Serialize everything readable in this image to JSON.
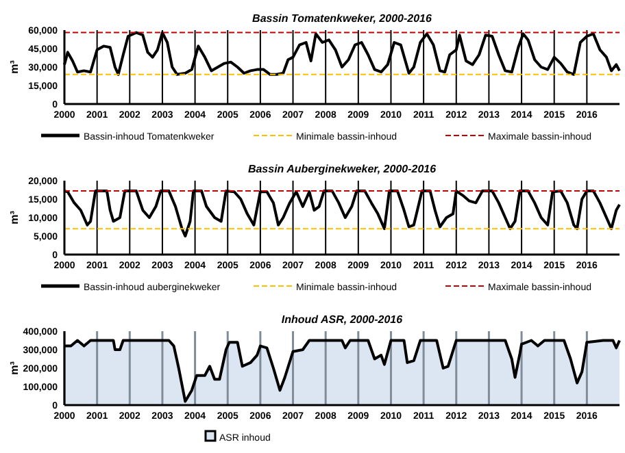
{
  "chart_data": [
    {
      "type": "line",
      "title": "Bassin Tomatenkweker, 2000-2016",
      "ylabel": "m³",
      "xlim": [
        2000,
        2017
      ],
      "xticks": [
        2000,
        2001,
        2002,
        2003,
        2004,
        2005,
        2006,
        2007,
        2008,
        2009,
        2010,
        2011,
        2012,
        2013,
        2014,
        2015,
        2016
      ],
      "ylim": [
        0,
        60000
      ],
      "yticks": [
        {
          "value": 0,
          "label": "0"
        },
        {
          "value": 15000,
          "label": "15,000"
        },
        {
          "value": 30000,
          "label": "30,000"
        },
        {
          "value": 45000,
          "label": "45,000"
        },
        {
          "value": 60000,
          "label": "60,000"
        }
      ],
      "grid": "x",
      "legend": "bottom",
      "line_style": "solid",
      "series": [
        {
          "name": "Bassin-inhoud Tomatenkweker",
          "color": "#000000",
          "x": [
            2000.0,
            2000.1,
            2000.25,
            2000.4,
            2000.6,
            2000.8,
            2001.0,
            2001.2,
            2001.4,
            2001.55,
            2001.65,
            2001.8,
            2001.95,
            2002.2,
            2002.4,
            2002.55,
            2002.7,
            2002.85,
            2003.0,
            2003.15,
            2003.3,
            2003.45,
            2003.7,
            2003.9,
            2004.1,
            2004.3,
            2004.5,
            2004.7,
            2004.9,
            2005.1,
            2005.3,
            2005.5,
            2005.7,
            2005.9,
            2006.1,
            2006.3,
            2006.5,
            2006.7,
            2006.85,
            2007.0,
            2007.2,
            2007.4,
            2007.55,
            2007.7,
            2007.9,
            2008.1,
            2008.3,
            2008.5,
            2008.7,
            2008.9,
            2009.1,
            2009.3,
            2009.5,
            2009.7,
            2009.9,
            2010.1,
            2010.3,
            2010.55,
            2010.7,
            2010.9,
            2011.1,
            2011.3,
            2011.5,
            2011.65,
            2011.8,
            2012.0,
            2012.1,
            2012.3,
            2012.5,
            2012.7,
            2012.9,
            2013.1,
            2013.3,
            2013.5,
            2013.7,
            2013.9,
            2014.05,
            2014.2,
            2014.4,
            2014.6,
            2014.8,
            2015.0,
            2015.2,
            2015.4,
            2015.6,
            2015.8,
            2016.0,
            2016.2,
            2016.4,
            2016.6,
            2016.75,
            2016.9,
            2017.0
          ],
          "values": [
            32000,
            42000,
            35000,
            26000,
            27000,
            26000,
            44000,
            47000,
            46000,
            30000,
            24000,
            40000,
            55000,
            58000,
            56000,
            42000,
            38000,
            44000,
            58000,
            50000,
            30000,
            24000,
            25000,
            28000,
            47000,
            38000,
            27000,
            30000,
            33000,
            34000,
            30000,
            25000,
            27000,
            28000,
            28000,
            24000,
            24000,
            25000,
            36000,
            38000,
            48000,
            50000,
            35000,
            57000,
            50000,
            52000,
            44000,
            30000,
            36000,
            48000,
            50000,
            40000,
            28000,
            26000,
            32000,
            50000,
            48000,
            25000,
            30000,
            50000,
            57000,
            48000,
            27000,
            26000,
            40000,
            44000,
            56000,
            35000,
            32000,
            40000,
            56000,
            55000,
            40000,
            27000,
            26000,
            46000,
            57000,
            52000,
            36000,
            30000,
            28000,
            38000,
            33000,
            26000,
            24000,
            50000,
            55000,
            57000,
            44000,
            38000,
            27000,
            32000,
            27000
          ]
        }
      ],
      "ref_lines": [
        {
          "axis": "y",
          "value": 24000,
          "label": "Minimale bassin-inhoud",
          "color": "#ffc000",
          "line_style": "dashed"
        },
        {
          "axis": "y",
          "value": 58000,
          "label": "Maximale bassin-inhoud",
          "color": "#c00000",
          "line_style": "dashed"
        }
      ]
    },
    {
      "type": "line",
      "title": "Bassin Auberginekweker, 2000-2016",
      "ylabel": "m³",
      "xlim": [
        2000,
        2017
      ],
      "xticks": [
        2000,
        2001,
        2002,
        2003,
        2004,
        2005,
        2006,
        2007,
        2008,
        2009,
        2010,
        2011,
        2012,
        2013,
        2014,
        2015,
        2016
      ],
      "ylim": [
        0,
        20000
      ],
      "yticks": [
        {
          "value": 0,
          "label": "0"
        },
        {
          "value": 5000,
          "label": "5,000"
        },
        {
          "value": 10000,
          "label": "10,000"
        },
        {
          "value": 15000,
          "label": "15,000"
        },
        {
          "value": 20000,
          "label": "20,000"
        }
      ],
      "grid": "x",
      "legend": "bottom",
      "line_style": "solid",
      "series": [
        {
          "name": "Bassin-inhoud  auberginekweker",
          "color": "#000000",
          "x": [
            2000.0,
            2000.1,
            2000.3,
            2000.5,
            2000.7,
            2000.8,
            2000.95,
            2001.3,
            2001.4,
            2001.5,
            2001.7,
            2001.85,
            2002.2,
            2002.4,
            2002.6,
            2002.8,
            2002.95,
            2003.2,
            2003.4,
            2003.6,
            2003.7,
            2003.85,
            2003.95,
            2004.2,
            2004.35,
            2004.6,
            2004.8,
            2004.95,
            2005.2,
            2005.4,
            2005.6,
            2005.8,
            2006.0,
            2006.2,
            2006.4,
            2006.55,
            2006.7,
            2006.9,
            2007.1,
            2007.3,
            2007.5,
            2007.65,
            2007.8,
            2007.95,
            2008.2,
            2008.4,
            2008.6,
            2008.8,
            2008.95,
            2009.2,
            2009.4,
            2009.6,
            2009.8,
            2009.95,
            2010.2,
            2010.4,
            2010.55,
            2010.7,
            2010.95,
            2011.2,
            2011.35,
            2011.5,
            2011.7,
            2011.9,
            2012.0,
            2012.2,
            2012.4,
            2012.6,
            2012.8,
            2013.1,
            2013.3,
            2013.5,
            2013.65,
            2013.8,
            2013.95,
            2014.2,
            2014.4,
            2014.6,
            2014.8,
            2014.95,
            2015.2,
            2015.4,
            2015.6,
            2015.7,
            2015.85,
            2016.0,
            2016.2,
            2016.4,
            2016.6,
            2016.75,
            2016.9,
            2017.0
          ],
          "values": [
            17200,
            17000,
            14000,
            12000,
            8000,
            9000,
            17200,
            17200,
            12000,
            9000,
            10000,
            17200,
            17200,
            12000,
            10000,
            13000,
            17200,
            17200,
            13000,
            7000,
            5000,
            9000,
            17200,
            17200,
            13000,
            10000,
            9000,
            17200,
            17000,
            15000,
            11000,
            8000,
            17000,
            17000,
            14000,
            8000,
            10000,
            14000,
            17000,
            13000,
            17000,
            12000,
            13000,
            17200,
            17200,
            14000,
            10000,
            13000,
            17200,
            17200,
            14000,
            11000,
            7000,
            17200,
            17200,
            12000,
            7500,
            8000,
            17200,
            17200,
            12000,
            7500,
            10000,
            11000,
            17200,
            16000,
            14500,
            14000,
            17200,
            17200,
            14000,
            10000,
            7000,
            9000,
            17200,
            17200,
            14000,
            10000,
            8000,
            17000,
            17200,
            14000,
            8000,
            7000,
            15000,
            17200,
            17200,
            14000,
            10000,
            7000,
            12000,
            13500
          ]
        }
      ],
      "ref_lines": [
        {
          "axis": "y",
          "value": 7000,
          "label": "Minimale bassin-inhoud",
          "color": "#ffc000",
          "line_style": "dashed"
        },
        {
          "axis": "y",
          "value": 17200,
          "label": "Maximale bassin-inhoud",
          "color": "#c00000",
          "line_style": "dashed"
        }
      ]
    },
    {
      "type": "area",
      "title": "Inhoud ASR, 2000-2016",
      "ylabel": "m³",
      "xlim": [
        2000,
        2017
      ],
      "xticks": [
        2000,
        2001,
        2002,
        2003,
        2004,
        2005,
        2006,
        2007,
        2008,
        2009,
        2010,
        2011,
        2012,
        2013,
        2014,
        2015,
        2016
      ],
      "ylim": [
        0,
        400000
      ],
      "yticks": [
        {
          "value": 0,
          "label": "0"
        },
        {
          "value": 100000,
          "label": "100,000"
        },
        {
          "value": 200000,
          "label": "200,000"
        },
        {
          "value": 300000,
          "label": "300,000"
        },
        {
          "value": 400000,
          "label": "400,000"
        }
      ],
      "grid": "x",
      "legend": "bottom",
      "series": [
        {
          "name": "ASR inhoud",
          "color": "#dce6f2",
          "x": [
            2000.0,
            2000.2,
            2000.4,
            2000.6,
            2000.8,
            2001.5,
            2001.55,
            2001.7,
            2001.8,
            2003.2,
            2003.35,
            2003.5,
            2003.7,
            2003.9,
            2004.05,
            2004.3,
            2004.45,
            2004.6,
            2004.75,
            2004.95,
            2005.05,
            2005.3,
            2005.45,
            2005.7,
            2005.9,
            2006.0,
            2006.2,
            2006.4,
            2006.6,
            2006.75,
            2007.0,
            2007.3,
            2007.5,
            2008.5,
            2008.6,
            2008.75,
            2009.3,
            2009.5,
            2009.7,
            2009.8,
            2010.0,
            2010.4,
            2010.5,
            2010.7,
            2010.9,
            2011.4,
            2011.6,
            2011.75,
            2012.0,
            2013.5,
            2013.7,
            2013.8,
            2013.95,
            2014.0,
            2014.3,
            2014.5,
            2014.7,
            2015.3,
            2015.5,
            2015.7,
            2015.85,
            2016.0,
            2016.5,
            2016.8,
            2016.9,
            2017.0
          ],
          "values": [
            320000,
            320000,
            350000,
            320000,
            350000,
            350000,
            300000,
            300000,
            350000,
            350000,
            320000,
            200000,
            20000,
            80000,
            160000,
            160000,
            210000,
            140000,
            140000,
            300000,
            340000,
            340000,
            210000,
            230000,
            270000,
            320000,
            310000,
            200000,
            80000,
            150000,
            290000,
            300000,
            350000,
            350000,
            310000,
            350000,
            350000,
            250000,
            270000,
            220000,
            350000,
            350000,
            230000,
            240000,
            350000,
            350000,
            200000,
            210000,
            350000,
            350000,
            250000,
            150000,
            280000,
            330000,
            350000,
            320000,
            350000,
            350000,
            250000,
            120000,
            180000,
            340000,
            350000,
            350000,
            310000,
            350000
          ]
        }
      ]
    }
  ]
}
